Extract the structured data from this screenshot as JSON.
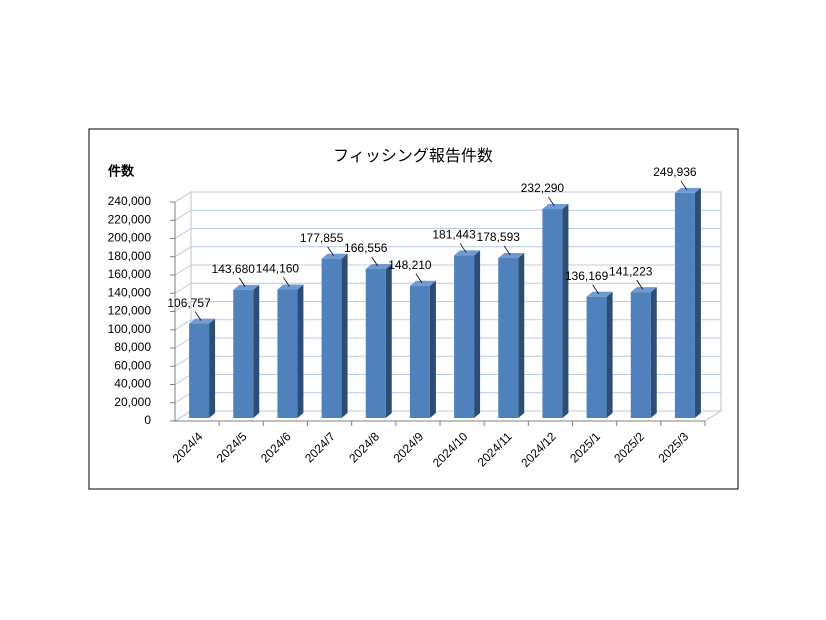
{
  "chart_data": {
    "type": "bar3d",
    "title": "フィッシング報告件数",
    "y_label": "件数",
    "categories": [
      "2024/4",
      "2024/5",
      "2024/6",
      "2024/7",
      "2024/8",
      "2024/9",
      "2024/10",
      "2024/11",
      "2024/12",
      "2025/1",
      "2025/2",
      "2025/3"
    ],
    "values": [
      106757,
      143680,
      144160,
      177855,
      166556,
      148210,
      181443,
      178593,
      232290,
      136169,
      141223,
      249936
    ],
    "value_labels": [
      "106,757",
      "143,680",
      "144,160",
      "177,855",
      "166,556",
      "148,210",
      "181,443",
      "178,593",
      "232,290",
      "136,169",
      "141,223",
      "249,936"
    ],
    "color": "#4f81bd",
    "ylim": [
      0,
      240000
    ],
    "yticks": [
      0,
      {
        "value": 20000,
        "label": "20,000"
      },
      {
        "value": 40000,
        "label": "40,000"
      },
      {
        "value": 60000,
        "label": "60,000"
      },
      {
        "value": 80000,
        "label": "80,000"
      },
      {
        "value": 100000,
        "label": "100,000"
      },
      {
        "value": 120000,
        "label": "120,000"
      },
      {
        "value": 140000,
        "label": "140,000"
      },
      {
        "value": 160000,
        "label": "160,000"
      },
      {
        "value": 180000,
        "label": "180,000"
      },
      {
        "value": 200000,
        "label": "200,000"
      },
      {
        "value": 220000,
        "label": "220,000"
      },
      {
        "value": 240000,
        "label": "240,000"
      }
    ],
    "grid": true
  }
}
